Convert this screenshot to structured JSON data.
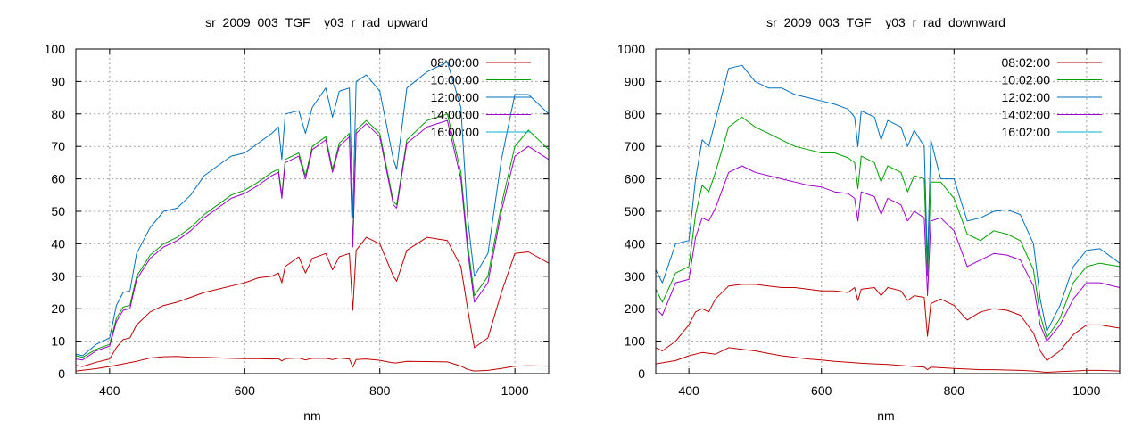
{
  "chart_data": [
    {
      "type": "line",
      "title": "sr_2009_003_TGF__y03_r_rad_upward",
      "xlabel": "nm",
      "ylabel": "",
      "xlim": [
        350,
        1050
      ],
      "ylim": [
        0,
        100
      ],
      "xticks": [
        400,
        600,
        800,
        1000
      ],
      "yticks": [
        0,
        10,
        20,
        30,
        40,
        50,
        60,
        70,
        80,
        90,
        100
      ],
      "grid": true,
      "legend_position": "top-right",
      "series": [
        {
          "name": "08:00:00",
          "color": "#c00000",
          "x": [
            350,
            380,
            400,
            420,
            440,
            460,
            480,
            500,
            520,
            540,
            560,
            580,
            600,
            620,
            640,
            650,
            655,
            660,
            680,
            690,
            700,
            720,
            730,
            740,
            755,
            760,
            765,
            780,
            800,
            820,
            825,
            840,
            870,
            900,
            920,
            930,
            940,
            960,
            980,
            1000,
            1020,
            1050
          ],
          "y": [
            0.8,
            1.5,
            2.2,
            3.0,
            3.8,
            4.8,
            5.2,
            5.3,
            5.0,
            5.0,
            4.9,
            4.7,
            4.6,
            4.6,
            4.5,
            4.6,
            3.9,
            4.6,
            4.8,
            4.2,
            4.7,
            4.7,
            4.3,
            4.8,
            4.5,
            2.0,
            4.3,
            4.5,
            4.1,
            3.3,
            3.3,
            3.8,
            3.7,
            3.6,
            2.3,
            1.3,
            0.8,
            1.0,
            1.6,
            2.3,
            2.4,
            2.3
          ]
        },
        {
          "name": "",
          "color": "#c00000",
          "x": [
            350,
            360,
            380,
            400,
            410,
            420,
            430,
            440,
            460,
            480,
            500,
            520,
            540,
            560,
            580,
            600,
            620,
            640,
            650,
            655,
            660,
            680,
            690,
            700,
            720,
            730,
            740,
            755,
            760,
            765,
            780,
            800,
            820,
            825,
            840,
            870,
            900,
            920,
            930,
            940,
            960,
            980,
            1000,
            1020,
            1050
          ],
          "y": [
            2.5,
            2.2,
            3.5,
            4.5,
            8.0,
            10.5,
            11.0,
            15.0,
            19.0,
            21.0,
            22.0,
            23.5,
            25.0,
            26.0,
            27.0,
            28.0,
            29.5,
            30.0,
            31.0,
            28.0,
            33.0,
            36.0,
            31.0,
            35.5,
            37.0,
            32.0,
            36.0,
            37.0,
            19.5,
            38.0,
            42.0,
            40.0,
            30.0,
            28.5,
            38.0,
            42.0,
            41.0,
            33.0,
            20.0,
            8.0,
            11.0,
            25.0,
            37.0,
            37.5,
            34.0
          ]
        },
        {
          "name": "10:00:00",
          "color": "#00a000",
          "x": [
            350,
            360,
            380,
            400,
            410,
            420,
            430,
            440,
            460,
            480,
            500,
            520,
            540,
            560,
            580,
            600,
            620,
            640,
            650,
            655,
            660,
            680,
            690,
            700,
            720,
            730,
            740,
            755,
            760,
            765,
            780,
            800,
            820,
            825,
            840,
            870,
            900,
            920,
            930,
            940,
            960,
            980,
            1000,
            1020,
            1050
          ],
          "y": [
            5.5,
            5.0,
            7.5,
            9.0,
            17.0,
            20.5,
            21.0,
            30.0,
            36.5,
            40.0,
            42.0,
            45.0,
            49.0,
            52.0,
            55.0,
            56.5,
            59.0,
            62.0,
            63.0,
            55.0,
            66.0,
            68.0,
            61.0,
            70.0,
            73.0,
            63.0,
            71.0,
            74.0,
            40.0,
            75.0,
            78.0,
            74.0,
            53.0,
            52.0,
            72.0,
            78.0,
            80.0,
            62.0,
            40.0,
            24.0,
            30.0,
            52.0,
            70.0,
            75.0,
            69.0
          ]
        },
        {
          "name": "12:00:00",
          "color": "#0070c0",
          "x": [
            350,
            360,
            380,
            400,
            410,
            420,
            430,
            440,
            460,
            480,
            500,
            520,
            540,
            560,
            580,
            600,
            620,
            640,
            650,
            655,
            660,
            680,
            690,
            700,
            720,
            730,
            740,
            755,
            760,
            765,
            780,
            800,
            820,
            825,
            840,
            870,
            900,
            920,
            930,
            940,
            960,
            980,
            1000,
            1020,
            1050
          ],
          "y": [
            6.0,
            5.5,
            9.0,
            11.0,
            21.0,
            25.0,
            25.5,
            37.0,
            45.0,
            50.0,
            51.0,
            55.0,
            61.0,
            64.0,
            67.0,
            68.0,
            71.0,
            74.0,
            76.0,
            66.0,
            80.0,
            81.0,
            74.0,
            82.0,
            88.0,
            79.0,
            87.0,
            88.0,
            48.0,
            90.0,
            92.0,
            87.0,
            66.0,
            63.0,
            88.0,
            93.0,
            96.0,
            82.0,
            48.0,
            30.0,
            37.0,
            66.0,
            86.0,
            86.0,
            80.0
          ]
        },
        {
          "name": "14:00:00",
          "color": "#a000d0",
          "x": [
            350,
            360,
            380,
            400,
            410,
            420,
            430,
            440,
            460,
            480,
            500,
            520,
            540,
            560,
            580,
            600,
            620,
            640,
            650,
            655,
            660,
            680,
            690,
            700,
            720,
            730,
            740,
            755,
            760,
            765,
            780,
            800,
            820,
            825,
            840,
            870,
            900,
            920,
            930,
            940,
            960,
            980,
            1000,
            1020,
            1050
          ],
          "y": [
            4.5,
            4.2,
            7.0,
            8.5,
            16.0,
            19.5,
            20.0,
            29.0,
            35.5,
            39.0,
            41.0,
            44.0,
            48.0,
            51.0,
            54.0,
            55.5,
            58.0,
            61.0,
            62.0,
            54.0,
            65.0,
            67.0,
            60.0,
            69.0,
            72.0,
            62.0,
            70.0,
            73.0,
            39.0,
            74.0,
            77.0,
            73.0,
            52.0,
            51.0,
            71.0,
            76.0,
            78.0,
            60.0,
            38.0,
            22.0,
            28.0,
            50.0,
            67.0,
            70.0,
            66.0
          ]
        },
        {
          "name": "16:00:00",
          "color": "#00b0d0",
          "x": [],
          "y": []
        }
      ]
    },
    {
      "type": "line",
      "title": "sr_2009_003_TGF__y03_r_rad_downward",
      "xlabel": "nm",
      "ylabel": "",
      "xlim": [
        350,
        1050
      ],
      "ylim": [
        0,
        1000
      ],
      "xticks": [
        400,
        600,
        800,
        1000
      ],
      "yticks": [
        0,
        100,
        200,
        300,
        400,
        500,
        600,
        700,
        800,
        900,
        1000
      ],
      "grid": true,
      "legend_position": "top-right",
      "series": [
        {
          "name": "08:02:00",
          "color": "#c00000",
          "x": [
            350,
            380,
            400,
            420,
            440,
            460,
            480,
            500,
            520,
            540,
            560,
            580,
            600,
            620,
            640,
            660,
            680,
            700,
            720,
            740,
            755,
            760,
            765,
            780,
            800,
            820,
            840,
            860,
            880,
            900,
            920,
            935,
            940,
            960,
            980,
            1000,
            1020,
            1050
          ],
          "y": [
            30,
            40,
            55,
            65,
            60,
            80,
            75,
            70,
            62,
            55,
            50,
            45,
            42,
            38,
            35,
            32,
            30,
            28,
            25,
            22,
            20,
            12,
            20,
            18,
            16,
            14,
            12,
            12,
            11,
            10,
            8,
            5,
            4,
            6,
            8,
            10,
            10,
            8
          ]
        },
        {
          "name": "",
          "color": "#c00000",
          "x": [
            350,
            360,
            380,
            400,
            410,
            420,
            430,
            440,
            460,
            480,
            500,
            520,
            540,
            560,
            580,
            600,
            620,
            640,
            650,
            655,
            660,
            680,
            690,
            700,
            720,
            730,
            740,
            755,
            760,
            765,
            780,
            800,
            820,
            840,
            860,
            880,
            900,
            920,
            930,
            940,
            960,
            980,
            1000,
            1020,
            1050
          ],
          "y": [
            80,
            70,
            100,
            150,
            190,
            200,
            190,
            230,
            270,
            275,
            275,
            270,
            265,
            265,
            260,
            255,
            255,
            250,
            265,
            225,
            260,
            265,
            240,
            265,
            255,
            225,
            240,
            235,
            115,
            215,
            230,
            210,
            165,
            190,
            200,
            195,
            180,
            125,
            70,
            40,
            70,
            120,
            150,
            150,
            140
          ]
        },
        {
          "name": "10:02:00",
          "color": "#00a000",
          "x": [
            350,
            360,
            380,
            400,
            410,
            420,
            430,
            440,
            460,
            480,
            500,
            520,
            540,
            560,
            580,
            600,
            620,
            640,
            650,
            655,
            660,
            680,
            690,
            700,
            720,
            730,
            740,
            755,
            760,
            765,
            780,
            800,
            820,
            840,
            860,
            880,
            900,
            920,
            930,
            940,
            960,
            980,
            1000,
            1020,
            1050
          ],
          "y": [
            260,
            220,
            310,
            330,
            490,
            580,
            560,
            620,
            760,
            790,
            760,
            740,
            720,
            700,
            690,
            680,
            680,
            665,
            650,
            570,
            670,
            650,
            590,
            640,
            620,
            560,
            610,
            600,
            300,
            590,
            590,
            540,
            430,
            410,
            440,
            430,
            410,
            320,
            180,
            110,
            170,
            280,
            330,
            340,
            330
          ]
        },
        {
          "name": "12:02:00",
          "color": "#0070c0",
          "x": [
            350,
            360,
            380,
            400,
            410,
            420,
            430,
            440,
            460,
            480,
            500,
            520,
            540,
            560,
            580,
            600,
            620,
            640,
            650,
            655,
            660,
            680,
            690,
            700,
            720,
            730,
            740,
            755,
            760,
            765,
            780,
            800,
            820,
            840,
            860,
            880,
            900,
            920,
            930,
            940,
            960,
            980,
            1000,
            1020,
            1050
          ],
          "y": [
            320,
            280,
            400,
            410,
            600,
            720,
            700,
            780,
            940,
            950,
            900,
            880,
            880,
            860,
            850,
            840,
            830,
            815,
            790,
            700,
            810,
            790,
            720,
            780,
            760,
            700,
            750,
            700,
            340,
            720,
            600,
            600,
            470,
            480,
            500,
            505,
            490,
            400,
            230,
            130,
            210,
            330,
            380,
            385,
            340
          ]
        },
        {
          "name": "14:02:00",
          "color": "#a000d0",
          "x": [
            350,
            360,
            380,
            400,
            410,
            420,
            430,
            440,
            460,
            480,
            500,
            520,
            540,
            560,
            580,
            600,
            620,
            640,
            650,
            655,
            660,
            680,
            690,
            700,
            720,
            730,
            740,
            755,
            760,
            765,
            780,
            800,
            820,
            840,
            860,
            880,
            900,
            920,
            930,
            940,
            960,
            980,
            1000,
            1020,
            1050
          ],
          "y": [
            200,
            180,
            280,
            290,
            420,
            480,
            470,
            510,
            620,
            640,
            620,
            610,
            600,
            590,
            580,
            575,
            560,
            555,
            540,
            470,
            560,
            545,
            490,
            540,
            520,
            470,
            500,
            480,
            240,
            470,
            480,
            440,
            330,
            350,
            370,
            365,
            350,
            270,
            150,
            100,
            150,
            230,
            280,
            280,
            265
          ]
        },
        {
          "name": "16:02:00",
          "color": "#00b0d0",
          "x": [],
          "y": []
        }
      ]
    }
  ]
}
